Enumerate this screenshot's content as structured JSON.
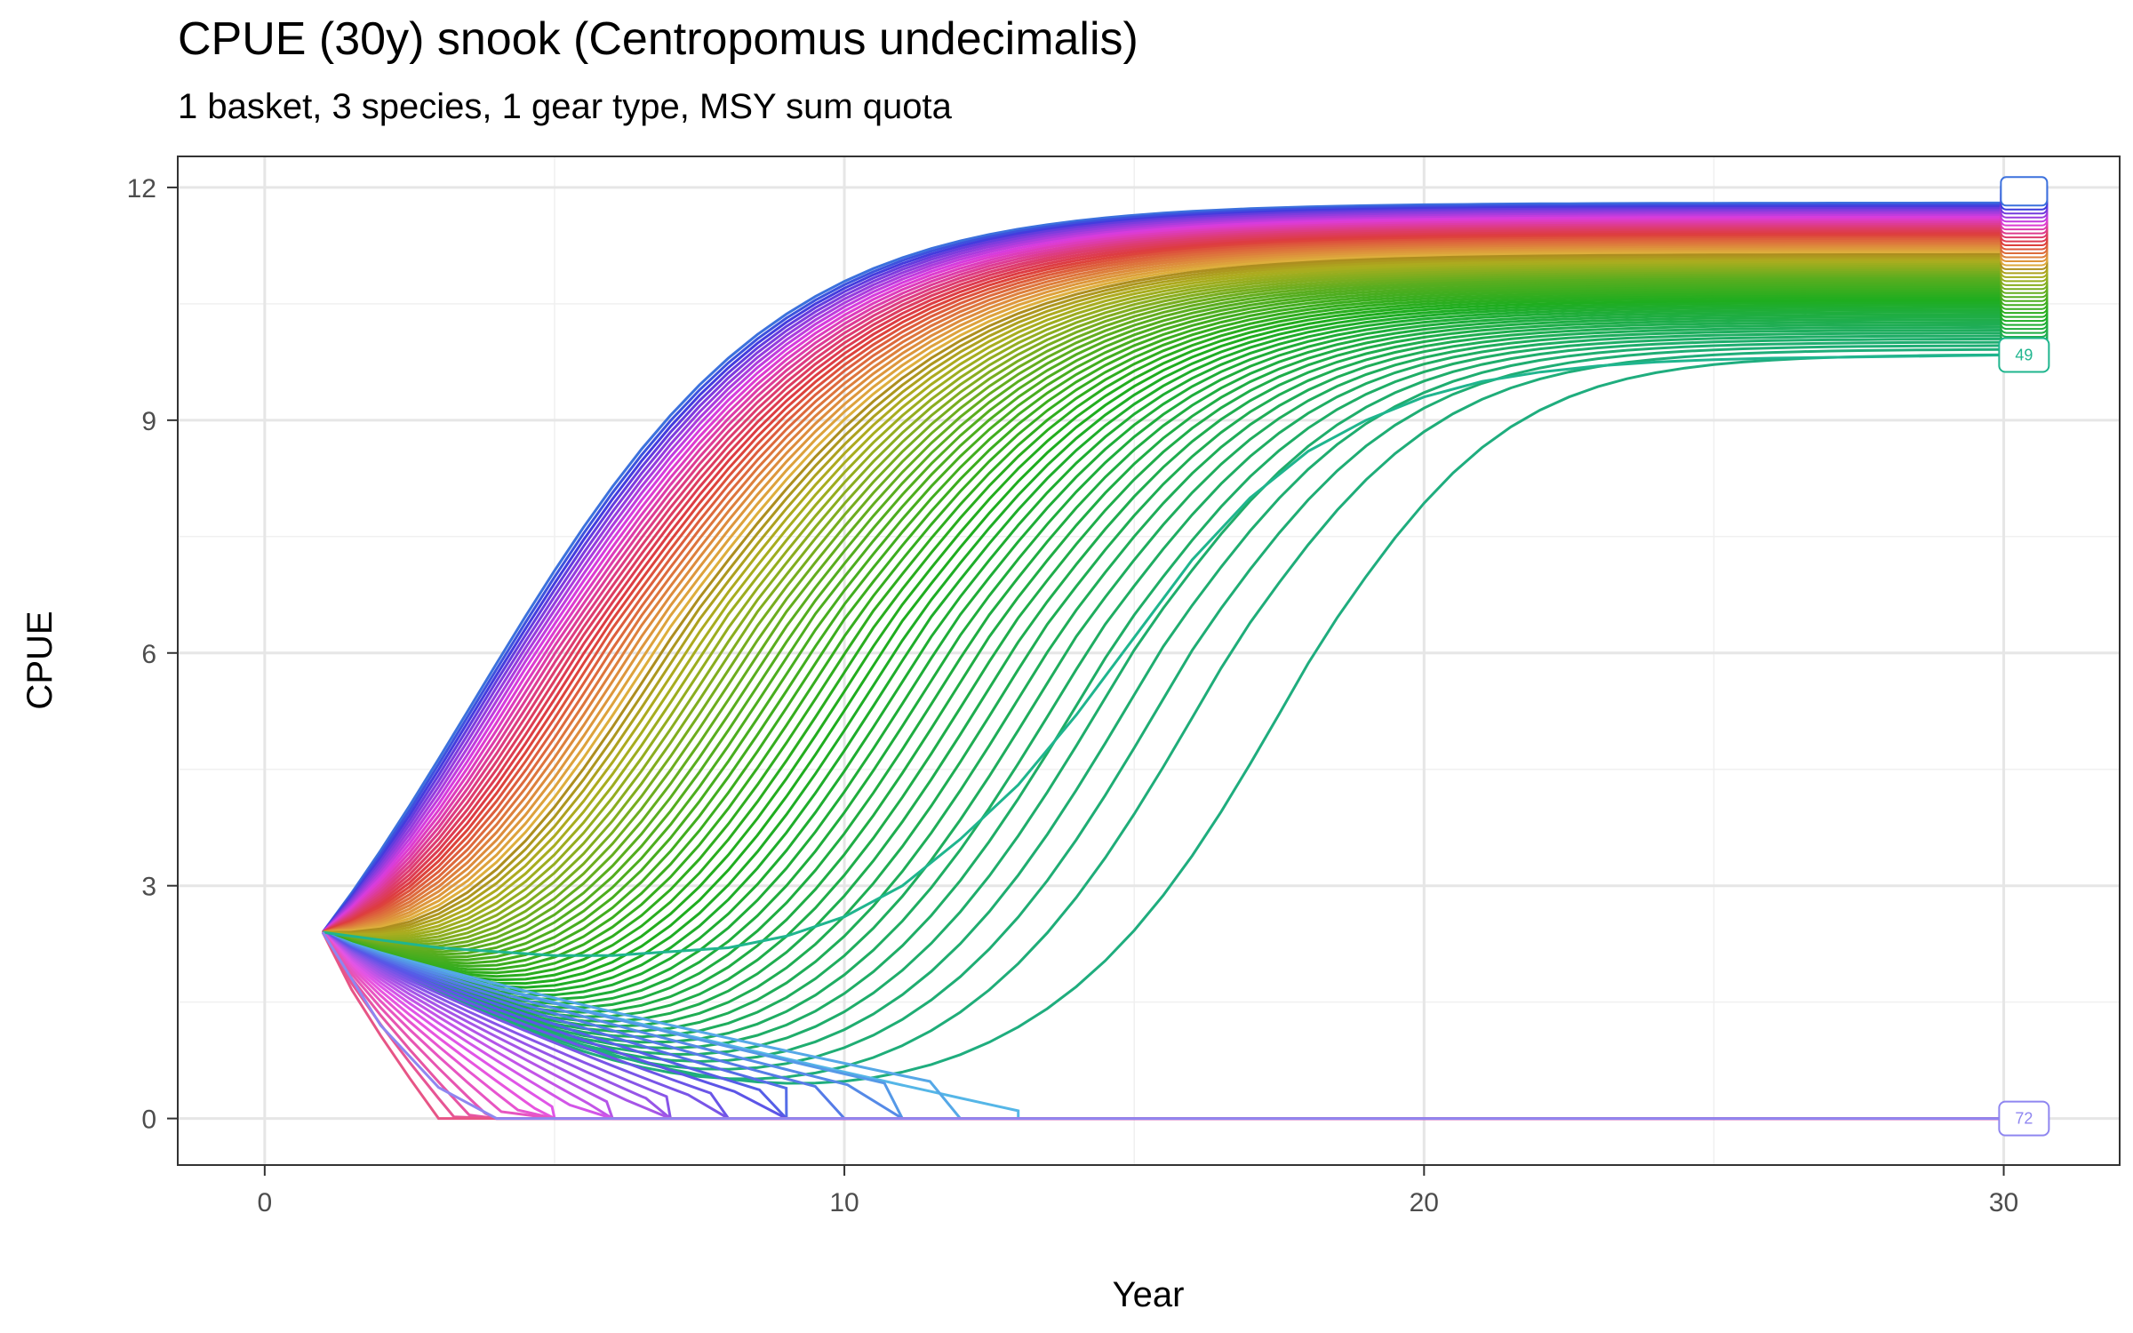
{
  "chart_data": {
    "type": "line",
    "title": "CPUE (30y) snook (Centropomus undecimalis)",
    "subtitle": "1 basket, 3 species, 1 gear type, MSY sum quota",
    "xlabel": "Year",
    "ylabel": "CPUE",
    "xlim": [
      -1.5,
      32
    ],
    "ylim": [
      -0.6,
      12.4
    ],
    "x_ticks": [
      0,
      10,
      20,
      30
    ],
    "y_ticks": [
      0,
      3,
      6,
      9,
      12
    ],
    "grid": true,
    "legend": "none",
    "start": {
      "x": 1,
      "y": 2.4
    },
    "representative_series": [
      {
        "name": "49",
        "x": [
          1,
          2,
          3,
          4,
          5,
          6,
          7,
          8,
          9,
          10,
          11,
          12,
          13,
          14,
          15,
          16,
          17,
          18,
          19,
          20,
          21,
          22,
          23,
          24,
          25,
          26,
          27,
          28,
          29,
          30
        ],
        "values": [
          2.4,
          2.3,
          2.2,
          2.15,
          2.1,
          2.1,
          2.15,
          2.2,
          2.35,
          2.6,
          3.0,
          3.6,
          4.3,
          5.2,
          6.2,
          7.2,
          8.0,
          8.6,
          9.0,
          9.3,
          9.5,
          9.62,
          9.7,
          9.75,
          9.78,
          9.8,
          9.81,
          9.82,
          9.83,
          9.84
        ]
      },
      {
        "name": "72",
        "x": [
          1,
          2,
          3,
          4,
          5,
          30
        ],
        "values": [
          2.4,
          1.2,
          0.4,
          0.0,
          0.0,
          0.0
        ]
      }
    ],
    "end_labels": [
      {
        "text": "49",
        "x": 30.35,
        "y": 9.84,
        "color": "#1fb58e"
      },
      {
        "text": "72",
        "x": 30.35,
        "y": 0.0,
        "color": "#8f86f0"
      }
    ]
  }
}
